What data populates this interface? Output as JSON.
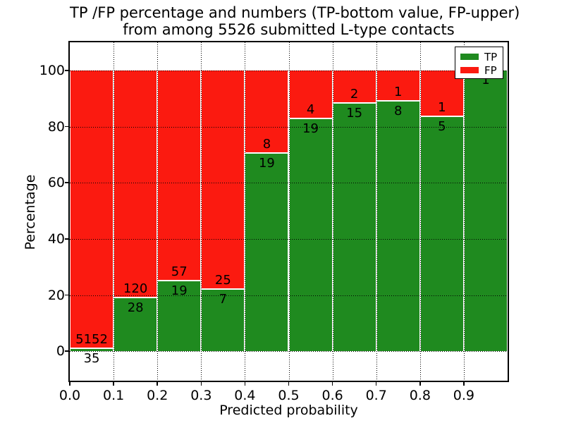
{
  "figure": {
    "title_line1": "TP /FP percentage and numbers (TP-bottom value, FP-upper)",
    "title_line2": "from among 5526 submitted L-type contacts"
  },
  "chart_data": {
    "type": "bar",
    "stacked": true,
    "normalized_to_percent": true,
    "title": "TP /FP percentage and numbers (TP-bottom value, FP-upper)\nfrom among 5526 submitted L-type contacts",
    "xlabel": "Predicted probability",
    "ylabel": "Percentage",
    "total_contacts": 5526,
    "bin_width": 0.1,
    "categories": [
      "0.0-0.1",
      "0.1-0.2",
      "0.2-0.3",
      "0.3-0.4",
      "0.4-0.5",
      "0.5-0.6",
      "0.6-0.7",
      "0.7-0.8",
      "0.8-0.9",
      "0.9-1.0"
    ],
    "bin_starts": [
      0.0,
      0.1,
      0.2,
      0.3,
      0.4,
      0.5,
      0.6,
      0.7,
      0.8,
      0.9
    ],
    "series": [
      {
        "name": "TP",
        "color": "#1f8a1f",
        "values": [
          35,
          28,
          19,
          7,
          19,
          19,
          15,
          8,
          5,
          1
        ]
      },
      {
        "name": "FP",
        "color": "#fb1a10",
        "values": [
          5152,
          120,
          57,
          25,
          8,
          4,
          2,
          1,
          1,
          0
        ]
      }
    ],
    "xlim": [
      0,
      1
    ],
    "ylim": [
      -10.5,
      110
    ],
    "x_tick_labels": [
      "0.0",
      "0.1",
      "0.2",
      "0.3",
      "0.4",
      "0.5",
      "0.6",
      "0.7",
      "0.8",
      "0.9"
    ],
    "y_tick_labels": [
      "0",
      "20",
      "40",
      "60",
      "80",
      "100"
    ],
    "y_ticks": [
      0,
      20,
      40,
      60,
      80,
      100
    ],
    "grid": true,
    "grid_style": "dotted",
    "legend_position": "upper right"
  },
  "legend": {
    "items": [
      {
        "label": "TP",
        "color": "#1f8a1f"
      },
      {
        "label": "FP",
        "color": "#fb1a10"
      }
    ]
  }
}
